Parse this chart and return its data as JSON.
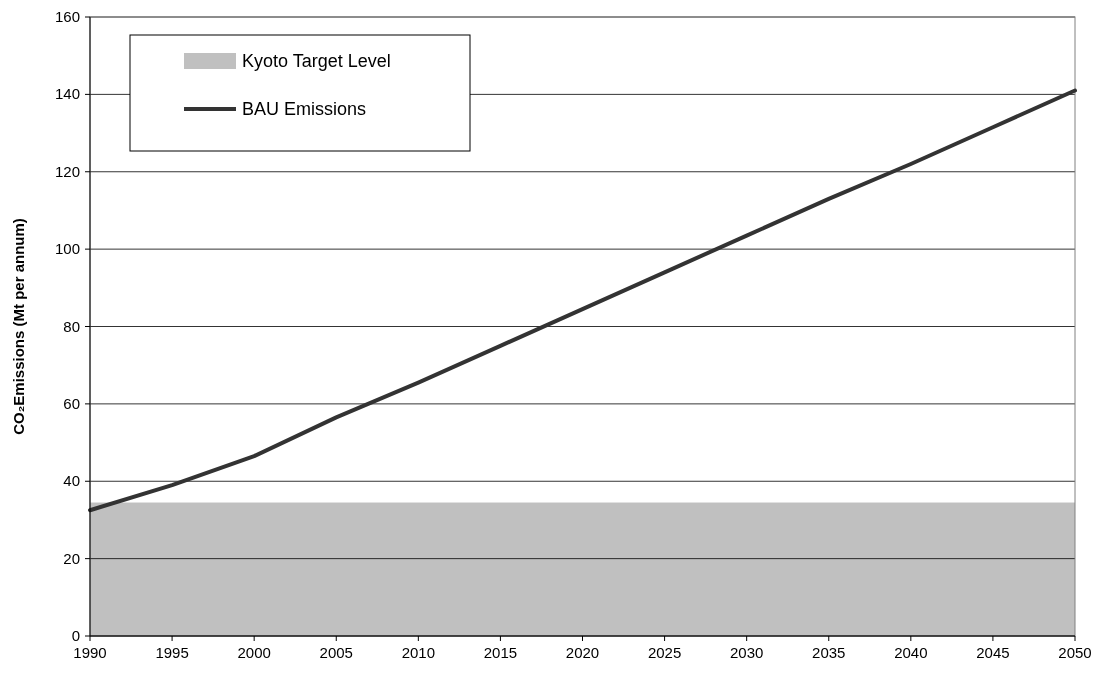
{
  "chart_data": {
    "type": "line",
    "ylabel": "CO₂Emissions (Mt per annum)",
    "x": [
      1990,
      1995,
      2000,
      2005,
      2010,
      2015,
      2020,
      2025,
      2030,
      2035,
      2040,
      2045,
      2050
    ],
    "series": [
      {
        "name": "BAU Emissions",
        "color": "#333333",
        "values": [
          32.5,
          39,
          46.5,
          56.5,
          65.5,
          75,
          84.5,
          94,
          103.5,
          113,
          122,
          131.5,
          141
        ]
      }
    ],
    "bands": [
      {
        "axis": "y",
        "from": 0,
        "to": 34.5,
        "label": "Kyoto Target Level",
        "color": "#c0c0c0"
      }
    ],
    "xlim": [
      1990,
      2050
    ],
    "xticks": [
      1990,
      1995,
      2000,
      2005,
      2010,
      2015,
      2020,
      2025,
      2030,
      2035,
      2040,
      2045,
      2050
    ],
    "ylim": [
      0,
      160
    ],
    "yticks": [
      0,
      20,
      40,
      60,
      80,
      100,
      120,
      140,
      160
    ],
    "grid": "y",
    "legend": "top left",
    "marker": "none",
    "line_style": "solid"
  }
}
